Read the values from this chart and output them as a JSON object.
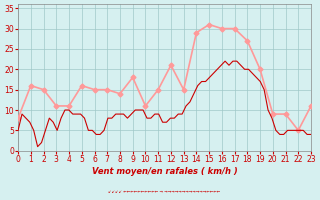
{
  "title": "",
  "xlabel": "Vent moyen/en rafales ( km/h )",
  "ylabel": "",
  "bg_color": "#d6f0f0",
  "grid_color": "#a0c8c8",
  "avg_wind_color": "#cc0000",
  "gust_color": "#ff9999",
  "xlim": [
    0,
    23
  ],
  "ylim": [
    0,
    36
  ],
  "yticks": [
    0,
    5,
    10,
    15,
    20,
    25,
    30,
    35
  ],
  "xticks": [
    0,
    1,
    2,
    3,
    4,
    5,
    6,
    7,
    8,
    9,
    10,
    11,
    12,
    13,
    14,
    15,
    16,
    17,
    18,
    19,
    20,
    21,
    22,
    23
  ],
  "avg_wind": [
    5,
    9,
    7,
    0,
    5,
    8,
    5,
    8,
    10,
    10,
    9,
    9,
    4,
    8,
    9,
    17,
    18,
    21,
    22,
    20,
    20,
    4,
    4,
    4
  ],
  "gusts": [
    8,
    16,
    15,
    11,
    11,
    16,
    15,
    15,
    14,
    18,
    11,
    15,
    21,
    15,
    29,
    31,
    30,
    30,
    27,
    20,
    9,
    9,
    5,
    11
  ],
  "avg_wind_fine": [
    5,
    9,
    8,
    7,
    5,
    1,
    2,
    5,
    8,
    7,
    5,
    8,
    10,
    10,
    9,
    9,
    9,
    8,
    5,
    5,
    4,
    4,
    5,
    8,
    8,
    9,
    9,
    9,
    8,
    9,
    10,
    10,
    10,
    8,
    8,
    9,
    9,
    7,
    7,
    8,
    8,
    9,
    9,
    11,
    12,
    14,
    16,
    17,
    17,
    18,
    19,
    20,
    21,
    22,
    21,
    22,
    22,
    21,
    20,
    20,
    19,
    18,
    17,
    15,
    10,
    8,
    5,
    4,
    4,
    5,
    5,
    5,
    5,
    5,
    4,
    4
  ]
}
